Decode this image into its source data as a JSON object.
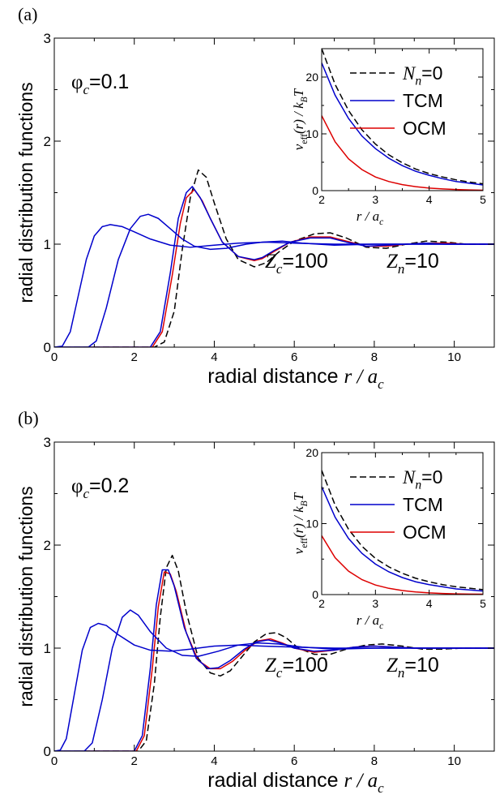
{
  "colors": {
    "nn0": "#000000",
    "tcm": "#0000cc",
    "ocm": "#dd0000",
    "axis": "#000000"
  },
  "chart_data": [
    {
      "type": "line",
      "panel_label": "(a)",
      "annotations": {
        "phi": "φ",
        "phi_sub": "c",
        "phi_value": "=0.1",
        "zc": "Z",
        "zc_sub": "c",
        "zc_value": "=100",
        "zn": "Z",
        "zn_sub": "n",
        "zn_value": "=10"
      },
      "ylabel": "radial distribution functions",
      "xlabel": "radial distance",
      "xlabel_math": "r / a",
      "xlabel_sub": "c",
      "xlim": [
        0,
        11
      ],
      "ylim": [
        0,
        3
      ],
      "xticks": [
        0,
        2,
        4,
        6,
        8,
        10
      ],
      "yticks": [
        0,
        1,
        2,
        3
      ],
      "grid": false,
      "main_series": [
        {
          "key": "nn0",
          "style": "dashed",
          "x": [
            0,
            2.5,
            2.75,
            3.0,
            3.2,
            3.4,
            3.6,
            3.8,
            4.0,
            4.3,
            4.6,
            5.0,
            5.3,
            5.6,
            6.0,
            6.5,
            6.9,
            7.3,
            7.8,
            8.3,
            8.8,
            9.3,
            9.8,
            10.3,
            11
          ],
          "y": [
            0,
            0,
            0.05,
            0.35,
            0.95,
            1.45,
            1.72,
            1.65,
            1.4,
            1.05,
            0.85,
            0.78,
            0.82,
            0.92,
            1.03,
            1.1,
            1.11,
            1.06,
            0.97,
            0.96,
            1.0,
            1.03,
            1.02,
            1.0,
            1.0
          ]
        },
        {
          "key": "ocm",
          "style": "solid",
          "x": [
            0,
            2.45,
            2.7,
            2.95,
            3.15,
            3.3,
            3.5,
            3.7,
            3.9,
            4.2,
            4.6,
            5.0,
            5.2,
            5.5,
            5.9,
            6.4,
            6.9,
            7.3,
            7.8,
            8.3,
            8.8,
            9.3,
            9.8,
            10.3,
            11
          ],
          "y": [
            0,
            0,
            0.15,
            0.7,
            1.2,
            1.45,
            1.53,
            1.42,
            1.25,
            1.02,
            0.88,
            0.84,
            0.86,
            0.93,
            1.02,
            1.07,
            1.07,
            1.03,
            0.98,
            0.98,
            1.0,
            1.01,
            1.01,
            1.0,
            1.0
          ]
        },
        {
          "key": "tcm",
          "style": "solid",
          "x": [
            0,
            2.4,
            2.65,
            2.9,
            3.1,
            3.3,
            3.45,
            3.65,
            3.9,
            4.2,
            4.6,
            5.0,
            5.2,
            5.5,
            5.9,
            6.4,
            6.9,
            7.3,
            7.8,
            8.3,
            8.8,
            9.3,
            9.8,
            10.3,
            11
          ],
          "y": [
            0,
            0,
            0.15,
            0.72,
            1.25,
            1.5,
            1.56,
            1.45,
            1.25,
            1.02,
            0.88,
            0.85,
            0.87,
            0.94,
            1.02,
            1.06,
            1.06,
            1.02,
            0.98,
            0.99,
            1.0,
            1.01,
            1.0,
            1.0,
            1.0
          ]
        },
        {
          "key": "tcm",
          "style": "solid",
          "x": [
            0,
            0.2,
            0.4,
            0.6,
            0.8,
            1.0,
            1.2,
            1.4,
            1.7,
            2.0,
            2.4,
            2.9,
            3.4,
            4.0,
            4.6,
            5.3,
            6.0,
            7.0,
            8.0,
            9.0,
            10.0,
            11
          ],
          "y": [
            0,
            0.01,
            0.15,
            0.5,
            0.85,
            1.08,
            1.17,
            1.19,
            1.17,
            1.12,
            1.05,
            0.99,
            0.97,
            0.99,
            1.01,
            1.02,
            1.01,
            1.0,
            1.0,
            1.0,
            1.0,
            1.0
          ]
        },
        {
          "key": "tcm",
          "style": "solid",
          "x": [
            0,
            0.85,
            1.05,
            1.3,
            1.6,
            1.9,
            2.15,
            2.35,
            2.6,
            2.9,
            3.2,
            3.5,
            3.9,
            4.3,
            4.8,
            5.2,
            5.7,
            6.2,
            7.0,
            8.0,
            9.0,
            10.0,
            11
          ],
          "y": [
            0,
            0,
            0.06,
            0.38,
            0.85,
            1.15,
            1.27,
            1.29,
            1.25,
            1.15,
            1.05,
            0.98,
            0.95,
            0.96,
            1.0,
            1.02,
            1.03,
            1.01,
            0.99,
            1.0,
            1.0,
            1.0,
            1.0
          ]
        }
      ],
      "inset": {
        "xlabel_math": "r / a",
        "xlabel_sub": "c",
        "ylabel_math_left": "v",
        "ylabel_sub": "eff",
        "ylabel_rest": "(r) / k",
        "ylabel_sub2": "B",
        "ylabel_end": "T",
        "xlim": [
          2,
          5
        ],
        "ylim": [
          0,
          25
        ],
        "xticks": [
          2,
          3,
          4,
          5
        ],
        "yticks": [
          0,
          10,
          20
        ],
        "legend": [
          {
            "key": "nn0",
            "style": "dashed",
            "label_main": "N",
            "label_sub": "n",
            "label_rest": "=0"
          },
          {
            "key": "tcm",
            "style": "solid",
            "label": "TCM"
          },
          {
            "key": "ocm",
            "style": "solid",
            "label": "OCM"
          }
        ],
        "series": [
          {
            "key": "nn0",
            "style": "dashed",
            "x": [
              2,
              2.25,
              2.5,
              2.75,
              3,
              3.25,
              3.5,
              3.75,
              4,
              4.25,
              4.5,
              4.75,
              5
            ],
            "y": [
              25,
              18.7,
              14.1,
              10.7,
              8.2,
              6.3,
              4.9,
              3.8,
              3.0,
              2.4,
              1.9,
              1.5,
              1.2
            ]
          },
          {
            "key": "tcm",
            "style": "solid",
            "x": [
              2,
              2.25,
              2.5,
              2.75,
              3,
              3.25,
              3.5,
              3.75,
              4,
              4.25,
              4.5,
              4.75,
              5
            ],
            "y": [
              22.5,
              16.8,
              12.7,
              9.6,
              7.4,
              5.7,
              4.4,
              3.4,
              2.7,
              2.1,
              1.6,
              1.3,
              1.0
            ]
          },
          {
            "key": "ocm",
            "style": "solid",
            "x": [
              2,
              2.25,
              2.5,
              2.75,
              3,
              3.25,
              3.5,
              3.75,
              4,
              4.25,
              4.5,
              4.75,
              5
            ],
            "y": [
              13.2,
              8.6,
              5.6,
              3.7,
              2.4,
              1.6,
              1.05,
              0.7,
              0.45,
              0.3,
              0.2,
              0.13,
              0.08
            ]
          }
        ]
      }
    },
    {
      "type": "line",
      "panel_label": "(b)",
      "annotations": {
        "phi": "φ",
        "phi_sub": "c",
        "phi_value": "=0.2",
        "zc": "Z",
        "zc_sub": "c",
        "zc_value": "=100",
        "zn": "Z",
        "zn_sub": "n",
        "zn_value": "=10"
      },
      "ylabel": "radial distribution functions",
      "xlabel": "radial distance",
      "xlabel_math": "r / a",
      "xlabel_sub": "c",
      "xlim": [
        0,
        11
      ],
      "ylim": [
        0,
        3
      ],
      "xticks": [
        0,
        2,
        4,
        6,
        8,
        10
      ],
      "yticks": [
        0,
        1,
        2,
        3
      ],
      "grid": false,
      "main_series": [
        {
          "key": "nn0",
          "style": "dashed",
          "x": [
            0,
            2.1,
            2.3,
            2.5,
            2.65,
            2.8,
            2.95,
            3.1,
            3.3,
            3.6,
            3.9,
            4.15,
            4.4,
            4.7,
            5.0,
            5.3,
            5.55,
            5.8,
            6.1,
            6.5,
            6.9,
            7.3,
            7.8,
            8.2,
            8.7,
            9.2,
            9.7,
            10.2,
            11
          ],
          "y": [
            0,
            0,
            0.1,
            0.65,
            1.3,
            1.78,
            1.9,
            1.75,
            1.35,
            0.9,
            0.76,
            0.73,
            0.78,
            0.92,
            1.06,
            1.14,
            1.15,
            1.1,
            1.0,
            0.94,
            0.94,
            0.99,
            1.03,
            1.04,
            1.02,
            0.99,
            0.99,
            1.0,
            1.0
          ]
        },
        {
          "key": "ocm",
          "style": "solid",
          "x": [
            0,
            2.05,
            2.25,
            2.45,
            2.6,
            2.75,
            2.9,
            3.05,
            3.3,
            3.6,
            3.9,
            4.15,
            4.45,
            4.8,
            5.1,
            5.4,
            5.7,
            6.0,
            6.5,
            7.0,
            7.5,
            8.0,
            8.5,
            9.0,
            10.0,
            11
          ],
          "y": [
            0,
            0,
            0.15,
            0.8,
            1.4,
            1.74,
            1.72,
            1.55,
            1.15,
            0.88,
            0.8,
            0.8,
            0.87,
            0.99,
            1.07,
            1.09,
            1.05,
            1.0,
            0.96,
            0.98,
            1.01,
            1.02,
            1.01,
            1.0,
            1.0,
            1.0
          ]
        },
        {
          "key": "tcm",
          "style": "solid",
          "x": [
            0,
            2.0,
            2.2,
            2.4,
            2.55,
            2.7,
            2.85,
            3.0,
            3.25,
            3.55,
            3.85,
            4.1,
            4.4,
            4.75,
            5.05,
            5.35,
            5.65,
            6.0,
            6.5,
            7.0,
            7.5,
            8.0,
            8.5,
            9.0,
            10.0,
            11
          ],
          "y": [
            0,
            0,
            0.15,
            0.8,
            1.42,
            1.76,
            1.76,
            1.6,
            1.2,
            0.9,
            0.8,
            0.81,
            0.88,
            0.99,
            1.06,
            1.08,
            1.05,
            1.0,
            0.97,
            0.98,
            1.01,
            1.02,
            1.01,
            1.0,
            1.0,
            1.0
          ]
        },
        {
          "key": "tcm",
          "style": "solid",
          "x": [
            0,
            0.15,
            0.3,
            0.5,
            0.7,
            0.9,
            1.1,
            1.3,
            1.6,
            2.0,
            2.4,
            2.9,
            3.4,
            4.0,
            4.6,
            5.2,
            6.0,
            7.0,
            8.0,
            9.0,
            10.0,
            11
          ],
          "y": [
            0,
            0.01,
            0.12,
            0.55,
            0.98,
            1.2,
            1.24,
            1.22,
            1.13,
            1.03,
            0.98,
            0.97,
            0.99,
            1.02,
            1.03,
            1.02,
            1.01,
            1.0,
            1.0,
            1.0,
            1.0,
            1.0
          ]
        },
        {
          "key": "tcm",
          "style": "solid",
          "x": [
            0,
            0.75,
            0.95,
            1.2,
            1.45,
            1.7,
            1.9,
            2.1,
            2.4,
            2.8,
            3.2,
            3.6,
            4.1,
            4.6,
            5.1,
            5.6,
            6.2,
            7.0,
            8.0,
            9.0,
            10.0,
            11
          ],
          "y": [
            0,
            0,
            0.08,
            0.5,
            1.0,
            1.3,
            1.37,
            1.32,
            1.16,
            1.0,
            0.93,
            0.92,
            0.97,
            1.03,
            1.05,
            1.04,
            1.01,
            0.99,
            1.0,
            1.0,
            1.0,
            1.0
          ]
        }
      ],
      "inset": {
        "xlabel_math": "r / a",
        "xlabel_sub": "c",
        "ylabel_math_left": "v",
        "ylabel_sub": "eff",
        "ylabel_rest": "(r) / k",
        "ylabel_sub2": "B",
        "ylabel_end": "T",
        "xlim": [
          2,
          5
        ],
        "ylim": [
          0,
          20
        ],
        "xticks": [
          2,
          3,
          4,
          5
        ],
        "yticks": [
          0,
          10,
          20
        ],
        "legend": [
          {
            "key": "nn0",
            "style": "dashed",
            "label_main": "N",
            "label_sub": "n",
            "label_rest": "=0"
          },
          {
            "key": "tcm",
            "style": "solid",
            "label": "TCM"
          },
          {
            "key": "ocm",
            "style": "solid",
            "label": "OCM"
          }
        ],
        "series": [
          {
            "key": "nn0",
            "style": "dashed",
            "x": [
              2,
              2.25,
              2.5,
              2.75,
              3,
              3.25,
              3.5,
              3.75,
              4,
              4.25,
              4.5,
              4.75,
              5
            ],
            "y": [
              17.5,
              12.6,
              9.2,
              6.8,
              5.1,
              3.9,
              3.0,
              2.3,
              1.8,
              1.4,
              1.1,
              0.9,
              0.7
            ]
          },
          {
            "key": "tcm",
            "style": "solid",
            "x": [
              2,
              2.25,
              2.5,
              2.75,
              3,
              3.25,
              3.5,
              3.75,
              4,
              4.25,
              4.5,
              4.75,
              5
            ],
            "y": [
              15.2,
              10.9,
              7.9,
              5.8,
              4.3,
              3.2,
              2.4,
              1.8,
              1.4,
              1.1,
              0.8,
              0.65,
              0.5
            ]
          },
          {
            "key": "ocm",
            "style": "solid",
            "x": [
              2,
              2.25,
              2.5,
              2.75,
              3,
              3.25,
              3.5,
              3.75,
              4,
              4.25,
              4.5,
              4.75,
              5
            ],
            "y": [
              8.3,
              5.2,
              3.3,
              2.1,
              1.35,
              0.88,
              0.57,
              0.37,
              0.24,
              0.16,
              0.1,
              0.07,
              0.05
            ]
          }
        ]
      }
    }
  ]
}
